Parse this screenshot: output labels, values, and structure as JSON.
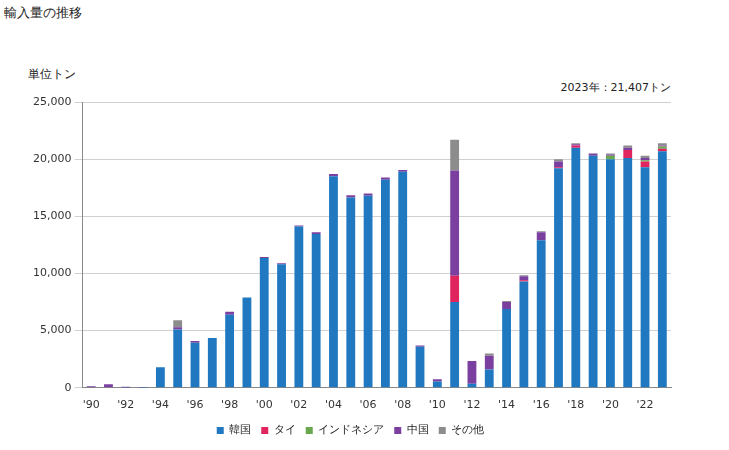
{
  "chart_data": {
    "type": "bar",
    "title": "輸入量の推移",
    "ylabel": "単位トン",
    "annotation": "2023年：21,407トン",
    "stacked": true,
    "grid": true,
    "legend": "bottom",
    "categories": [
      "'90",
      null,
      "'92",
      null,
      "'94",
      null,
      "'96",
      null,
      "'98",
      null,
      "'00",
      null,
      "'02",
      null,
      "'04",
      null,
      "'06",
      null,
      "'08",
      null,
      "'10",
      null,
      "'12",
      null,
      "'14",
      null,
      "'16",
      null,
      "'18",
      null,
      "'20",
      null,
      "'22",
      null
    ],
    "series": [
      {
        "name": "韓国",
        "color": "#2079c0",
        "values": [
          50,
          50,
          20,
          10,
          1800,
          5100,
          3950,
          4350,
          6400,
          7900,
          11350,
          10800,
          14100,
          13450,
          18500,
          16650,
          16800,
          18200,
          18900,
          3600,
          550,
          7500,
          350,
          1600,
          6900,
          9300,
          12900,
          19200,
          21000,
          20300,
          20000,
          20100,
          19300,
          20700
        ]
      },
      {
        "name": "タイ",
        "color": "#e0245e",
        "values": [
          0,
          0,
          0,
          0,
          0,
          0,
          0,
          0,
          0,
          0,
          0,
          0,
          0,
          0,
          0,
          0,
          0,
          0,
          0,
          0,
          0,
          2300,
          0,
          0,
          0,
          100,
          0,
          100,
          200,
          0,
          0,
          700,
          500,
          200
        ]
      },
      {
        "name": "インドネシア",
        "color": "#6aa84f",
        "values": [
          0,
          0,
          0,
          0,
          0,
          0,
          0,
          0,
          0,
          0,
          0,
          0,
          0,
          0,
          0,
          0,
          0,
          0,
          0,
          0,
          0,
          0,
          0,
          0,
          0,
          0,
          0,
          0,
          0,
          0,
          300,
          0,
          100,
          200
        ]
      },
      {
        "name": "中国",
        "color": "#7b3fa0",
        "values": [
          80,
          250,
          80,
          40,
          0,
          200,
          150,
          0,
          250,
          0,
          100,
          100,
          100,
          150,
          200,
          200,
          200,
          200,
          150,
          100,
          200,
          9200,
          2000,
          1200,
          600,
          350,
          700,
          500,
          100,
          200,
          100,
          200,
          200,
          100
        ]
      },
      {
        "name": "その他",
        "color": "#8c8c8c",
        "values": [
          0,
          0,
          0,
          0,
          0,
          600,
          0,
          0,
          0,
          0,
          0,
          0,
          0,
          0,
          0,
          0,
          0,
          0,
          0,
          0,
          0,
          2700,
          0,
          200,
          100,
          100,
          100,
          200,
          100,
          0,
          100,
          200,
          200,
          200
        ]
      }
    ],
    "ylim": [
      0,
      25000
    ],
    "yticks": [
      0,
      {
        "value": 5000,
        "label": "5,000"
      },
      {
        "value": 10000,
        "label": "10,000"
      },
      {
        "value": 15000,
        "label": "15,000"
      },
      {
        "value": 20000,
        "label": "20,000"
      },
      {
        "value": 25000,
        "label": "25,000"
      }
    ]
  }
}
